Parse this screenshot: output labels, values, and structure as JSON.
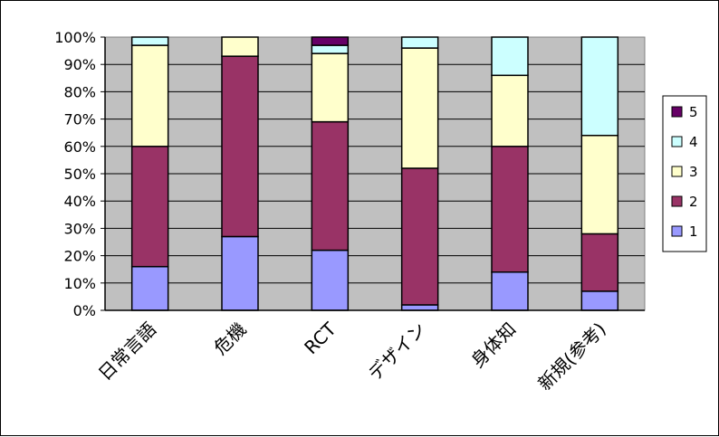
{
  "chart_data": {
    "type": "bar",
    "stacked": "percent",
    "title": "",
    "xlabel": "",
    "ylabel": "",
    "ylim": [
      0,
      100
    ],
    "y_ticks": [
      "0%",
      "10%",
      "20%",
      "30%",
      "40%",
      "50%",
      "60%",
      "70%",
      "80%",
      "90%",
      "100%"
    ],
    "categories": [
      "日常言語",
      "危機",
      "RCT",
      "デザイン",
      "身体知",
      "新規(参考)"
    ],
    "series": [
      {
        "name": "1",
        "color": "#9999ff",
        "values": [
          16,
          27,
          22,
          2,
          14,
          7
        ]
      },
      {
        "name": "2",
        "color": "#993366",
        "values": [
          44,
          66,
          47,
          50,
          46,
          21
        ]
      },
      {
        "name": "3",
        "color": "#ffffcc",
        "values": [
          37,
          7,
          25,
          44,
          26,
          36
        ]
      },
      {
        "name": "4",
        "color": "#ccffff",
        "values": [
          3,
          0,
          3,
          4,
          14,
          36
        ]
      },
      {
        "name": "5",
        "color": "#660066",
        "values": [
          0,
          0,
          3,
          0,
          0,
          0
        ]
      }
    ],
    "plot_background": "#c0c0c0",
    "grid": true,
    "legend_position": "right",
    "legend_order": [
      "5",
      "4",
      "3",
      "2",
      "1"
    ]
  }
}
